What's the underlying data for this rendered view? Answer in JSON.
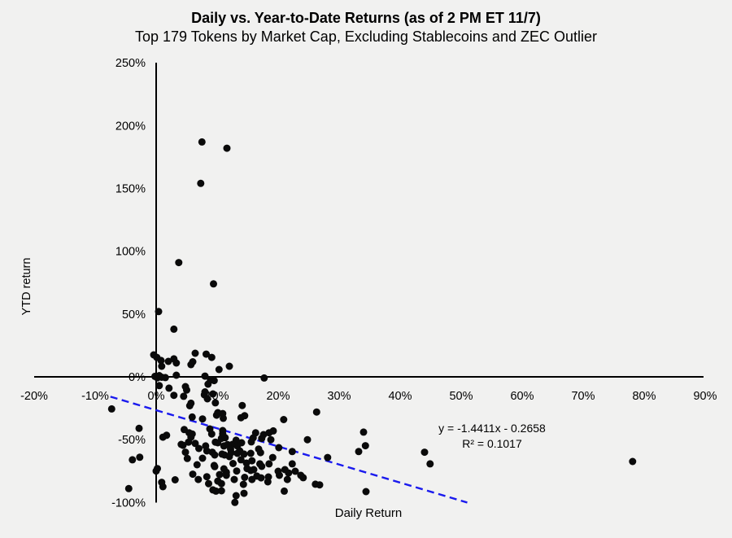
{
  "title": "Daily vs. Year-to-Date Returns (as of 2 PM ET 11/7)",
  "subtitle": "Top 179 Tokens by Market Cap, Excluding Stablecoins and ZEC Outlier",
  "annotation": {
    "equation": "y = -1.4411x - 0.2658",
    "r_squared": "R² = 0.1017"
  },
  "colors": {
    "background": "#f1f1f0",
    "point": "#0a0a0a",
    "trendline": "#1a1aee",
    "axis": "#000000",
    "text": "#000000"
  },
  "chart_data": {
    "type": "scatter",
    "title": "Daily vs. Year-to-Date Returns (as of 2 PM ET 11/7)",
    "subtitle": "Top 179 Tokens by Market Cap, Excluding Stablecoins and ZEC Outlier",
    "xlabel": "Daily Return",
    "ylabel": "YTD return",
    "x_tick_values": [
      -20,
      -10,
      0,
      10,
      20,
      30,
      40,
      50,
      60,
      70,
      80,
      90
    ],
    "x_tick_labels": [
      "-20%",
      "-10%",
      "0%",
      "10%",
      "20%",
      "30%",
      "40%",
      "50%",
      "60%",
      "70%",
      "80%",
      "90%"
    ],
    "y_tick_values": [
      250,
      200,
      150,
      100,
      50,
      0,
      -50,
      -100
    ],
    "y_tick_labels": [
      "250%",
      "200%",
      "150%",
      "100%",
      "50%",
      "0%",
      "-50%",
      "-100%"
    ],
    "xlim_pct": [
      -20,
      90
    ],
    "ylim_pct": [
      -100,
      250
    ],
    "grid": false,
    "legend": false,
    "trendline": {
      "slope": -1.4411,
      "intercept": -0.2658,
      "x_start_pct": -7.5,
      "x_end_pct": 51,
      "style": "dashed",
      "color": "#1a1aee"
    },
    "points_pct": [
      [
        7.5,
        187
      ],
      [
        11.6,
        182
      ],
      [
        7.3,
        154
      ],
      [
        3.7,
        91
      ],
      [
        9.4,
        74
      ],
      [
        0.4,
        52
      ],
      [
        2.9,
        38
      ],
      [
        -0.4,
        17.5
      ],
      [
        0.1,
        15.5
      ],
      [
        0.8,
        13
      ],
      [
        0.9,
        8.4
      ],
      [
        2,
        12.3
      ],
      [
        2.9,
        14.3
      ],
      [
        3.3,
        11
      ],
      [
        5.7,
        9.7
      ],
      [
        6,
        12
      ],
      [
        6.4,
        18.8
      ],
      [
        8.2,
        18.1
      ],
      [
        9.1,
        15.5
      ],
      [
        10.3,
        5.8
      ],
      [
        12,
        8.4
      ],
      [
        -0.2,
        0.4
      ],
      [
        0.2,
        -0.8
      ],
      [
        0.5,
        1
      ],
      [
        0.9,
        -0.3
      ],
      [
        1.5,
        -0.6
      ],
      [
        3.3,
        1.3
      ],
      [
        8,
        0.6
      ],
      [
        8.9,
        -2.6
      ],
      [
        9.5,
        -3
      ],
      [
        17.7,
        -0.9
      ],
      [
        0.5,
        -7
      ],
      [
        2.1,
        -9
      ],
      [
        4.8,
        -7.8
      ],
      [
        8.5,
        -5.8
      ],
      [
        2.9,
        -14.7
      ],
      [
        4.5,
        -15.5
      ],
      [
        5,
        -10.5
      ],
      [
        5.7,
        -21
      ],
      [
        7.9,
        -14.3
      ],
      [
        8,
        -12
      ],
      [
        8.4,
        -17.5
      ],
      [
        9.3,
        -13.6
      ],
      [
        9.7,
        -20.7
      ],
      [
        5.5,
        -23
      ],
      [
        14.1,
        -22.8
      ],
      [
        -7.3,
        -25.5
      ],
      [
        -2.8,
        -41
      ],
      [
        -3.9,
        -66
      ],
      [
        -2.7,
        -64
      ],
      [
        -4.5,
        -89
      ],
      [
        5.9,
        -32
      ],
      [
        7.6,
        -33.5
      ],
      [
        9.9,
        -30.5
      ],
      [
        10.1,
        -28.5
      ],
      [
        10.9,
        -29.2
      ],
      [
        11,
        -33
      ],
      [
        13.9,
        -32.5
      ],
      [
        14.5,
        -31
      ],
      [
        20.9,
        -34
      ],
      [
        26.3,
        -28
      ],
      [
        1.1,
        -48
      ],
      [
        1.7,
        -46.5
      ],
      [
        4.6,
        -42
      ],
      [
        5.4,
        -44.5
      ],
      [
        5.9,
        -45.5
      ],
      [
        5.7,
        -48
      ],
      [
        4.1,
        -53.8
      ],
      [
        5.3,
        -52
      ],
      [
        4.4,
        -54.5
      ],
      [
        6.4,
        -53
      ],
      [
        8.1,
        -55
      ],
      [
        8.8,
        -41.5
      ],
      [
        9.1,
        -45.5
      ],
      [
        9.7,
        -52
      ],
      [
        10.1,
        -52.5
      ],
      [
        10.7,
        -49
      ],
      [
        10.9,
        -42.8
      ],
      [
        10.9,
        -45.4
      ],
      [
        11.3,
        -48.5
      ],
      [
        11.1,
        -55
      ],
      [
        11.7,
        -54
      ],
      [
        12.5,
        -53.8
      ],
      [
        13.1,
        -50.5
      ],
      [
        13.3,
        -55
      ],
      [
        14,
        -52.5
      ],
      [
        15.6,
        -51.8
      ],
      [
        15.9,
        -48.6
      ],
      [
        16.3,
        -44.6
      ],
      [
        17.3,
        -49
      ],
      [
        17.6,
        -46
      ],
      [
        18.5,
        -44.5
      ],
      [
        19.2,
        -43
      ],
      [
        18.8,
        -50
      ],
      [
        20.1,
        -56.4
      ],
      [
        24.8,
        -50
      ],
      [
        34,
        -44
      ],
      [
        34.3,
        -54.8
      ],
      [
        4.8,
        -60
      ],
      [
        5.1,
        -65
      ],
      [
        7.6,
        -64.8
      ],
      [
        8.3,
        -59
      ],
      [
        9.2,
        -60
      ],
      [
        9.6,
        -62.2
      ],
      [
        10.8,
        -61.5
      ],
      [
        11.2,
        -62.2
      ],
      [
        12,
        -63.5
      ],
      [
        12.3,
        -60.3
      ],
      [
        12.6,
        -69
      ],
      [
        13.3,
        -60.9
      ],
      [
        13.7,
        -59
      ],
      [
        13.9,
        -66
      ],
      [
        14.4,
        -61.5
      ],
      [
        14.8,
        -68.7
      ],
      [
        15.5,
        -60.9
      ],
      [
        15.7,
        -66.8
      ],
      [
        17,
        -69.3
      ],
      [
        17.1,
        -60.3
      ],
      [
        18.5,
        -69.3
      ],
      [
        19.1,
        -64.2
      ],
      [
        22.3,
        -59.5
      ],
      [
        22.3,
        -69.3
      ],
      [
        28.1,
        -64.2
      ],
      [
        33.2,
        -59.5
      ],
      [
        44,
        -60
      ],
      [
        44.9,
        -69.3
      ],
      [
        78.1,
        -67.4
      ],
      [
        9.5,
        -70.6
      ],
      [
        0,
        -75
      ],
      [
        0.2,
        -73
      ],
      [
        6,
        -77.5
      ],
      [
        9.6,
        -71.5
      ],
      [
        10.4,
        -77.8
      ],
      [
        11.1,
        -73.2
      ],
      [
        11.5,
        -76
      ],
      [
        11.5,
        -78.4
      ],
      [
        13.2,
        -75
      ],
      [
        14.9,
        -73
      ],
      [
        15.5,
        -74.5
      ],
      [
        16,
        -73.9
      ],
      [
        17.3,
        -71.3
      ],
      [
        14.5,
        -80
      ],
      [
        16.5,
        -79
      ],
      [
        18.4,
        -79.7
      ],
      [
        20,
        -75.2
      ],
      [
        21.1,
        -73.9
      ],
      [
        21.7,
        -76.5
      ],
      [
        22.8,
        -75.2
      ],
      [
        23.7,
        -78.4
      ],
      [
        20.2,
        -78.4
      ],
      [
        0.9,
        -84
      ],
      [
        1.1,
        -87.5
      ],
      [
        3.1,
        -82
      ],
      [
        6.9,
        -81.7
      ],
      [
        8.3,
        -79.5
      ],
      [
        8.6,
        -85
      ],
      [
        9.3,
        -90
      ],
      [
        9.8,
        -91
      ],
      [
        10.1,
        -83
      ],
      [
        10.7,
        -85
      ],
      [
        10.7,
        -90.7
      ],
      [
        12.8,
        -81.7
      ],
      [
        12.9,
        -100
      ],
      [
        13.1,
        -94.6
      ],
      [
        14.3,
        -85.6
      ],
      [
        14.4,
        -92.7
      ],
      [
        15.7,
        -81.7
      ],
      [
        17.2,
        -80.4
      ],
      [
        18.3,
        -83.6
      ],
      [
        21,
        -91
      ],
      [
        21.5,
        -81.7
      ],
      [
        24.1,
        -80.3
      ],
      [
        26.1,
        -85.5
      ],
      [
        26.8,
        -86
      ],
      [
        34.4,
        -91.4
      ],
      [
        7,
        -57
      ],
      [
        12.2,
        -57.5
      ],
      [
        6.7,
        -70
      ],
      [
        16.8,
        -57.5
      ]
    ]
  }
}
